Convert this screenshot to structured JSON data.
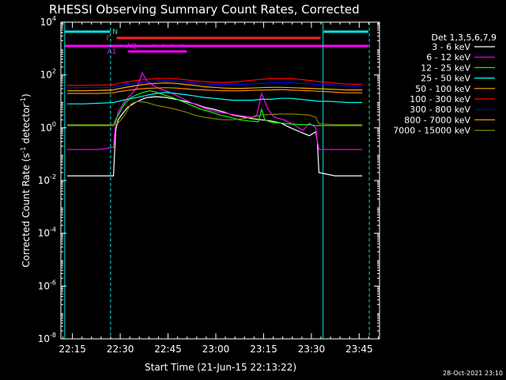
{
  "chart_data": {
    "type": "line",
    "title": "RHESSI Observing Summary Count Rates, Corrected",
    "xlabel": "Start Time (21-Jun-15 22:13:22)",
    "ylabel_main": "Corrected Count Rate (s",
    "ylabel_sup1": "-1",
    "ylabel_mid": " detector",
    "ylabel_sup2": "-1",
    "ylabel_end": ")",
    "y_log": true,
    "xlim_min": [
      -2,
      98
    ],
    "ylim_exp": [
      -8,
      4
    ],
    "x_ticks": [
      {
        "min": 1.63,
        "label": "22:15"
      },
      {
        "min": 16.63,
        "label": "22:30"
      },
      {
        "min": 31.63,
        "label": "22:45"
      },
      {
        "min": 46.63,
        "label": "23:00"
      },
      {
        "min": 61.63,
        "label": "23:15"
      },
      {
        "min": 76.63,
        "label": "23:30"
      },
      {
        "min": 91.63,
        "label": "23:45"
      }
    ],
    "y_ticks": [
      {
        "exp": 4,
        "base": "10",
        "sup": "4"
      },
      {
        "exp": 2,
        "base": "10",
        "sup": "2"
      },
      {
        "exp": 0,
        "base": "10",
        "sup": "0"
      },
      {
        "exp": -2,
        "base": "10",
        "sup": "-2"
      },
      {
        "exp": -4,
        "base": "10",
        "sup": "-4"
      },
      {
        "exp": -6,
        "base": "10",
        "sup": "-6"
      },
      {
        "exp": -8,
        "base": "10",
        "sup": "-8"
      }
    ],
    "legend_header": "Det 1,3,5,6,7,9",
    "legend_position": "right",
    "series": [
      {
        "name": "3 - 6 keV",
        "color": "#ffffff",
        "x": [
          0,
          5,
          10,
          14.5,
          15.2,
          16,
          17,
          19,
          22,
          25,
          28,
          31,
          34,
          37,
          40,
          43,
          46,
          49,
          52,
          55,
          58,
          61,
          64,
          67,
          70,
          73,
          76,
          78,
          78.5,
          79,
          84,
          88,
          92.6
        ],
        "y": [
          0.015,
          0.015,
          0.015,
          0.015,
          0.8,
          2,
          3,
          6,
          10,
          14,
          15,
          14,
          12,
          10,
          8,
          6,
          5,
          4,
          3,
          2.6,
          2.2,
          2,
          1.8,
          1.5,
          1,
          0.7,
          0.5,
          0.7,
          0.3,
          0.02,
          0.015,
          0.015,
          0.015
        ]
      },
      {
        "name": "6 - 12 keV",
        "color": "#ff00ff",
        "x": [
          0,
          5,
          10,
          14.5,
          15.2,
          16,
          18,
          20,
          22,
          23.5,
          25,
          27,
          29,
          31,
          33,
          35,
          38,
          41,
          44,
          47,
          50,
          53,
          56,
          58,
          59.5,
          61,
          63,
          65,
          68,
          71,
          74,
          76,
          78,
          78.5,
          79,
          84,
          88,
          92.6
        ],
        "y": [
          0.15,
          0.15,
          0.15,
          0.18,
          1.5,
          4,
          10,
          18,
          35,
          120,
          60,
          40,
          30,
          25,
          20,
          15,
          10,
          7,
          5,
          4,
          3.5,
          3,
          2.7,
          2.5,
          3,
          20,
          5,
          2.5,
          2,
          1.3,
          0.8,
          1.5,
          1,
          0.3,
          0.15,
          0.15,
          0.15,
          0.15
        ]
      },
      {
        "name": "12 - 25 keV",
        "color": "#00ff00",
        "x": [
          0,
          5,
          10,
          14.5,
          15.2,
          16,
          18,
          20,
          22,
          24,
          26,
          28,
          30,
          33,
          36,
          39,
          42,
          45,
          48,
          51,
          54,
          57,
          60,
          61,
          62,
          64,
          67,
          70,
          73,
          76,
          78,
          79,
          84,
          88,
          92.6
        ],
        "y": [
          1.2,
          1.2,
          1.2,
          1.2,
          2,
          3,
          8,
          14,
          18,
          22,
          25,
          22,
          18,
          14,
          10,
          7,
          5,
          4,
          3,
          2.5,
          2,
          1.8,
          1.7,
          5,
          2,
          1.6,
          1.5,
          1.4,
          1.3,
          1.3,
          1.2,
          1.2,
          1.2,
          1.2,
          1.2
        ]
      },
      {
        "name": "25 - 50 keV",
        "color": "#00ffff",
        "x": [
          0,
          5,
          10,
          14.5,
          16,
          19,
          22,
          25,
          28,
          31,
          34,
          37,
          40,
          43,
          46,
          49,
          52,
          55,
          58,
          61,
          64,
          67,
          70,
          73,
          76,
          79,
          82,
          85,
          88,
          92.6
        ],
        "y": [
          8,
          8,
          8.5,
          9,
          10,
          12,
          14,
          17,
          20,
          22,
          20,
          18,
          16,
          14,
          13,
          12,
          11,
          11,
          11,
          12,
          12,
          13,
          13,
          12,
          11,
          10,
          10,
          9.5,
          9,
          9
        ]
      },
      {
        "name": "50 - 100 keV",
        "color": "#ffaa00",
        "x": [
          0,
          5,
          10,
          14.5,
          16,
          19,
          22,
          25,
          28,
          31,
          34,
          37,
          40,
          43,
          46,
          49,
          52,
          55,
          58,
          61,
          64,
          67,
          70,
          73,
          76,
          79,
          82,
          85,
          88,
          92.6
        ],
        "y": [
          25,
          25,
          26,
          27,
          30,
          35,
          40,
          45,
          48,
          50,
          48,
          44,
          40,
          36,
          34,
          32,
          31,
          31,
          32,
          33,
          34,
          34,
          33,
          32,
          31,
          30,
          29,
          28,
          27,
          27
        ]
      },
      {
        "name": "100 - 300 keV",
        "color": "#ff0000",
        "x": [
          0,
          5,
          10,
          14.5,
          16,
          19,
          22,
          25,
          28,
          31,
          34,
          37,
          40,
          43,
          46,
          49,
          52,
          55,
          58,
          61,
          64,
          67,
          70,
          73,
          76,
          79,
          82,
          85,
          88,
          92.6
        ],
        "y": [
          40,
          40,
          41,
          43,
          48,
          55,
          62,
          68,
          72,
          75,
          72,
          66,
          60,
          56,
          53,
          52,
          54,
          58,
          63,
          68,
          72,
          74,
          72,
          68,
          62,
          56,
          52,
          48,
          45,
          44
        ]
      },
      {
        "name": "300 - 800 keV",
        "color": "#0000ff",
        "x": [
          0,
          5,
          10,
          14.5,
          16,
          19,
          22,
          25,
          28,
          31,
          34,
          37,
          40,
          43,
          46,
          49,
          52,
          55,
          58,
          61,
          64,
          67,
          70,
          73,
          76,
          79,
          82,
          85,
          88,
          92.6
        ],
        "y": [
          33,
          33,
          33,
          34,
          38,
          44,
          50,
          55,
          58,
          60,
          58,
          54,
          50,
          46,
          44,
          43,
          43,
          44,
          46,
          48,
          50,
          51,
          50,
          48,
          46,
          44,
          42,
          40,
          38,
          37
        ]
      },
      {
        "name": "800 - 7000 keV",
        "color": "#ff8800",
        "x": [
          0,
          5,
          10,
          14.5,
          16,
          19,
          22,
          25,
          28,
          31,
          34,
          37,
          40,
          43,
          46,
          49,
          52,
          55,
          58,
          61,
          64,
          67,
          70,
          73,
          76,
          79,
          82,
          85,
          88,
          92.6
        ],
        "y": [
          20,
          20,
          20,
          21,
          23,
          26,
          29,
          31,
          32,
          33,
          32,
          30,
          28,
          27,
          26,
          25,
          25,
          25,
          26,
          27,
          27,
          28,
          27,
          26,
          25,
          24,
          23,
          22,
          21,
          21
        ]
      },
      {
        "name": "7000 - 15000 keV",
        "color": "#808000",
        "x": [
          0,
          5,
          10,
          14.5,
          16,
          18,
          20,
          22,
          25,
          28,
          31,
          34,
          37,
          40,
          43,
          46,
          49,
          52,
          55,
          58,
          61,
          64,
          67,
          70,
          73,
          76,
          78,
          79,
          84,
          88,
          92.6
        ],
        "y": [
          1.3,
          1.3,
          1.3,
          1.3,
          1.5,
          3,
          8,
          10,
          9,
          7,
          6,
          5,
          4,
          3,
          2.5,
          2.2,
          2,
          2,
          2.2,
          2.5,
          3,
          3.2,
          3.3,
          3.3,
          3.2,
          3,
          2.5,
          1.4,
          1.3,
          1.3,
          1.3
        ]
      }
    ],
    "annotations": {
      "N_label": "N",
      "F_label": "F",
      "AQ_label": "AQ",
      "A1_label": "A1"
    }
  },
  "footer": {
    "date_stamp": "28-Oct-2021 23:10"
  }
}
